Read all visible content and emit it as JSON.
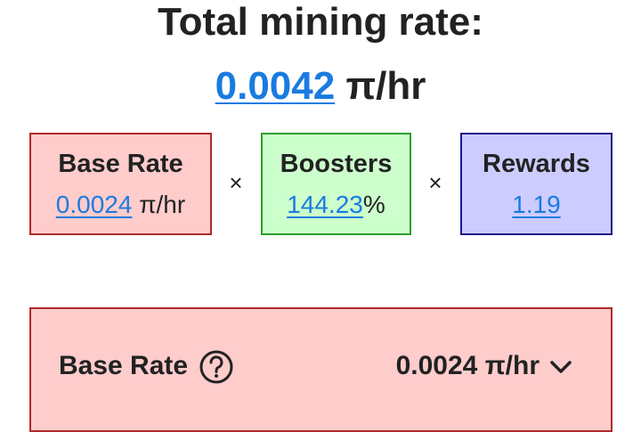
{
  "header": {
    "title": "Total mining rate:",
    "total_rate": "0.0042",
    "total_unit": "π/hr"
  },
  "formula": {
    "base": {
      "label": "Base Rate",
      "value": "0.0024",
      "unit": "π/hr"
    },
    "times_1": "×",
    "boosters": {
      "label": "Boosters",
      "value": "144.23",
      "unit": "%"
    },
    "times_2": "×",
    "rewards": {
      "label": "Rewards",
      "value": "1.19"
    }
  },
  "panel": {
    "label": "Base Rate",
    "value": "0.0024",
    "unit": "π/hr"
  }
}
